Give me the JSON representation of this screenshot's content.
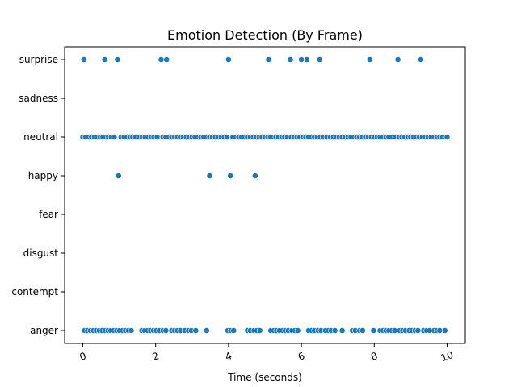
{
  "chart_data": {
    "type": "scatter",
    "title": "Emotion Detection (By Frame)",
    "xlabel": "Time (seconds)",
    "ylabel": "",
    "xlim": [
      -0.5,
      10.5
    ],
    "x_ticks": [
      0,
      2,
      4,
      6,
      8,
      10
    ],
    "x_tick_labels": [
      "0",
      "2",
      "4",
      "6",
      "8",
      "10"
    ],
    "x_tick_rotation_deg": 20,
    "categories": [
      "surprise",
      "sadness",
      "neutral",
      "happy",
      "fear",
      "disgust",
      "contempt",
      "anger"
    ],
    "marker_color": "#1f77b4",
    "grid": false,
    "legend": false,
    "series": [
      {
        "category": "surprise",
        "x": [
          0.03,
          0.6,
          0.95,
          2.15,
          2.3,
          4.0,
          5.1,
          5.7,
          6.0,
          6.15,
          6.5,
          7.88,
          8.65,
          9.28
        ]
      },
      {
        "category": "sadness",
        "x": []
      },
      {
        "category": "neutral",
        "x": [
          0.0,
          0.08,
          0.16,
          0.24,
          0.32,
          0.4,
          0.48,
          0.55,
          0.63,
          0.7,
          0.78,
          0.86,
          1.05,
          1.13,
          1.21,
          1.29,
          1.37,
          1.45,
          1.55,
          1.63,
          1.71,
          1.79,
          1.87,
          1.95,
          2.04,
          2.2,
          2.28,
          2.36,
          2.44,
          2.52,
          2.6,
          2.68,
          2.76,
          2.84,
          2.92,
          3.0,
          3.08,
          3.16,
          3.24,
          3.32,
          3.4,
          3.48,
          3.56,
          3.64,
          3.72,
          3.8,
          3.88,
          3.96,
          4.12,
          4.2,
          4.28,
          4.36,
          4.44,
          4.52,
          4.6,
          4.68,
          4.76,
          4.84,
          4.92,
          5.0,
          5.08,
          5.16,
          5.3,
          5.38,
          5.46,
          5.54,
          5.62,
          5.72,
          5.8,
          5.88,
          5.96,
          6.04,
          6.12,
          6.2,
          6.28,
          6.36,
          6.44,
          6.52,
          6.6,
          6.7,
          6.8,
          6.88,
          6.96,
          7.04,
          7.12,
          7.2,
          7.28,
          7.36,
          7.44,
          7.52,
          7.6,
          7.68,
          7.76,
          7.84,
          7.92,
          8.0,
          8.08,
          8.16,
          8.24,
          8.32,
          8.4,
          8.48,
          8.58,
          8.68,
          8.76,
          8.84,
          8.92,
          9.0,
          9.08,
          9.16,
          9.24,
          9.32,
          9.4,
          9.48,
          9.56,
          9.64,
          9.72,
          9.8,
          9.88,
          9.96,
          10.0
        ]
      },
      {
        "category": "happy",
        "x": [
          0.98,
          3.48,
          4.05,
          4.73
        ]
      },
      {
        "category": "fear",
        "x": []
      },
      {
        "category": "disgust",
        "x": []
      },
      {
        "category": "contempt",
        "x": []
      },
      {
        "category": "anger",
        "x": [
          0.05,
          0.13,
          0.21,
          0.29,
          0.37,
          0.45,
          0.53,
          0.61,
          0.69,
          0.77,
          0.85,
          0.93,
          1.01,
          1.09,
          1.17,
          1.25,
          1.33,
          1.62,
          1.7,
          1.78,
          1.86,
          1.94,
          2.02,
          2.1,
          2.2,
          2.28,
          2.44,
          2.52,
          2.6,
          2.68,
          2.8,
          2.9,
          2.98,
          3.1,
          3.4,
          3.98,
          4.06,
          4.14,
          4.52,
          4.6,
          4.7,
          4.78,
          4.86,
          5.16,
          5.24,
          5.32,
          5.4,
          5.48,
          5.56,
          5.64,
          5.74,
          5.82,
          5.9,
          6.2,
          6.28,
          6.36,
          6.46,
          6.54,
          6.66,
          6.74,
          6.82,
          6.92,
          7.12,
          7.4,
          7.48,
          7.6,
          7.68,
          7.98,
          8.16,
          8.24,
          8.32,
          8.4,
          8.48,
          8.56,
          8.7,
          8.78,
          8.86,
          8.96,
          9.04,
          9.12,
          9.2,
          9.36,
          9.44,
          9.52,
          9.64,
          9.72,
          9.8,
          9.94
        ]
      }
    ]
  }
}
